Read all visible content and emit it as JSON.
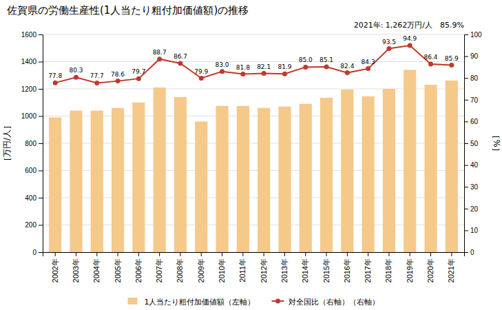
{
  "chart_data": {
    "type": "bar",
    "title": "佐賀県の労働生産性(1人当たり粗付加価値額)の推移",
    "annotations": [
      "2021年: 1,262万円/人　85.9%"
    ],
    "categories": [
      "2002年",
      "2003年",
      "2004年",
      "2005年",
      "2006年",
      "2007年",
      "2008年",
      "2009年",
      "2010年",
      "2011年",
      "2012年",
      "2013年",
      "2014年",
      "2015年",
      "2016年",
      "2017年",
      "2018年",
      "2019年",
      "2020年",
      "2021年"
    ],
    "series": [
      {
        "name": "1人当たり粗付加価値額（左軸）",
        "type": "bar",
        "color": "#F5C98A",
        "values": [
          990,
          1040,
          1040,
          1060,
          1100,
          1210,
          1140,
          960,
          1075,
          1075,
          1060,
          1070,
          1090,
          1135,
          1195,
          1145,
          1200,
          1340,
          1230,
          1262
        ]
      },
      {
        "name": "対全国比（右軸）（右軸）",
        "type": "line",
        "axis": "y2",
        "color": "#C0392B",
        "marker": "circle",
        "data_labels": true,
        "values": [
          77.8,
          80.3,
          77.7,
          78.6,
          79.7,
          88.7,
          86.7,
          79.9,
          83.0,
          81.8,
          82.1,
          81.9,
          85.0,
          85.1,
          82.4,
          84.3,
          93.5,
          94.9,
          86.4,
          85.9
        ],
        "value_labels": [
          "77.8",
          "80.3",
          "77.7",
          "78.6",
          "79.7",
          "88.7",
          "86.7",
          "79.9",
          "83.0",
          "81.8",
          "82.1",
          "81.9",
          "85.0",
          "85.1",
          "82.4",
          "84.3",
          "93.5",
          "94.9",
          "86.4",
          "85.9"
        ]
      }
    ],
    "ylabel": "［万円/人］",
    "y2label": "［%］",
    "ylim": [
      0,
      1600
    ],
    "yticks": [
      0,
      200,
      400,
      600,
      800,
      1000,
      1200,
      1400,
      1600
    ],
    "y2lim": [
      0,
      100
    ],
    "y2ticks": [
      0,
      10,
      20,
      30,
      40,
      50,
      60,
      70,
      80,
      90,
      100
    ],
    "grid": true,
    "legend": "bottom"
  }
}
